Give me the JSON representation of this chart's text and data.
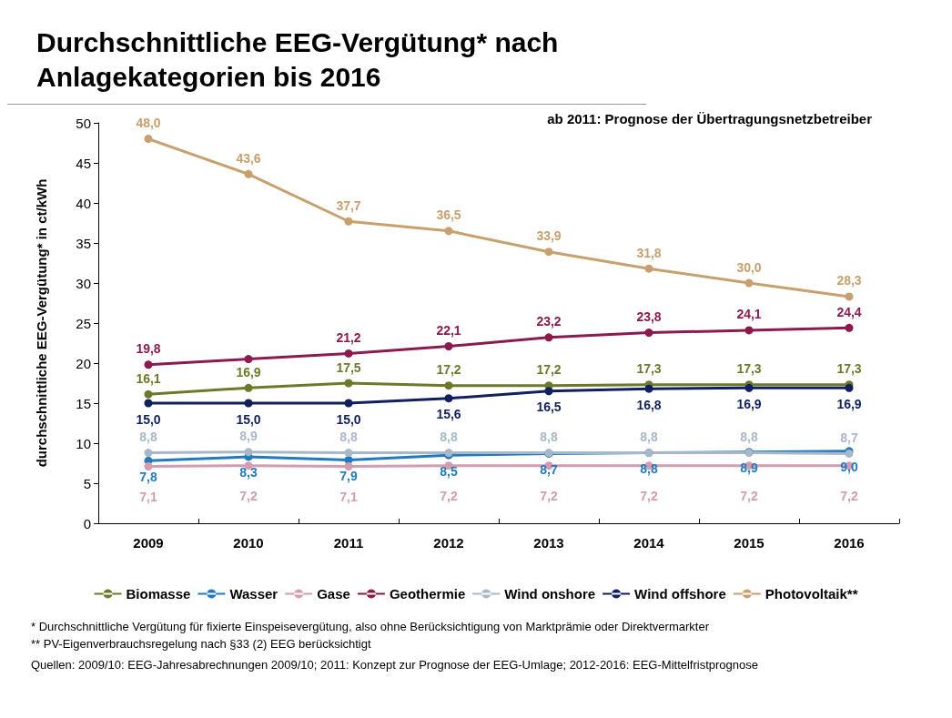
{
  "chart_data": {
    "type": "line",
    "title": "Durchschnittliche EEG-Vergütung* nach Anlagekategorien bis 2016",
    "ylabel": "durchschnittliche EEG-Vergütung* in ct/kWh",
    "categories": [
      "2009",
      "2010",
      "2011",
      "2012",
      "2013",
      "2014",
      "2015",
      "2016"
    ],
    "series": [
      {
        "name": "Biomasse",
        "color": "#6b7a2a",
        "values": [
          16.1,
          16.9,
          17.5,
          17.2,
          17.2,
          17.3,
          17.3,
          17.3
        ],
        "value_labels": [
          "16,1",
          "16,9",
          "17,5",
          "17,2",
          "17,2",
          "17,3",
          "17,3",
          "17,3"
        ]
      },
      {
        "name": "Wasser",
        "color": "#1f7ac0",
        "values": [
          7.8,
          8.3,
          7.9,
          8.5,
          8.7,
          8.8,
          8.9,
          9.0
        ],
        "value_labels": [
          "7,8",
          "8,3",
          "7,9",
          "8,5",
          "8,7",
          "8,8",
          "8,9",
          "9,0"
        ]
      },
      {
        "name": "Gase",
        "color": "#d49cb0",
        "values": [
          7.1,
          7.2,
          7.1,
          7.2,
          7.2,
          7.2,
          7.2,
          7.2
        ],
        "value_labels": [
          "7,1",
          "7,2",
          "7,1",
          "7,2",
          "7,2",
          "7,2",
          "7,2",
          "7,2"
        ]
      },
      {
        "name": "Geothermie",
        "color": "#8b1a4f",
        "values": [
          19.8,
          20.5,
          21.2,
          22.1,
          23.2,
          23.8,
          24.1,
          24.4
        ],
        "value_labels": [
          "19,8",
          null,
          "21,2",
          "22,1",
          "23,2",
          "23,8",
          "24,1",
          "24,4"
        ]
      },
      {
        "name": "Wind onshore",
        "color": "#a8b8c8",
        "values": [
          8.8,
          8.9,
          8.8,
          8.8,
          8.8,
          8.8,
          8.8,
          8.7
        ],
        "value_labels": [
          "8,8",
          "8,9",
          "8,8",
          "8,8",
          "8,8",
          "8,8",
          "8,8",
          "8,7"
        ]
      },
      {
        "name": "Wind offshore",
        "color": "#10205e",
        "values": [
          15.0,
          15.0,
          15.0,
          15.6,
          16.5,
          16.8,
          16.9,
          16.9
        ],
        "value_labels": [
          "15,0",
          "15,0",
          "15,0",
          "15,6",
          "16,5",
          "16,8",
          "16,9",
          "16,9"
        ]
      },
      {
        "name": "Photovoltaik**",
        "color": "#c8a06e",
        "values": [
          48.0,
          43.6,
          37.7,
          36.5,
          33.9,
          31.8,
          30.0,
          28.3
        ],
        "value_labels": [
          "48,0",
          "43,6",
          "37,7",
          "36,5",
          "33,9",
          "31,8",
          "30,0",
          "28,3"
        ]
      }
    ],
    "ylim": [
      0,
      50
    ],
    "yticks": [
      0,
      5,
      10,
      15,
      20,
      25,
      30,
      35,
      40,
      45,
      50
    ],
    "grid": false,
    "legend": "bottom",
    "marker": "circle",
    "line_style": "solid",
    "annotations": [
      "ab 2011: Prognose der Übertragungsnetzbetreiber",
      "* Durchschnittliche Vergütung für fixierte Einspeisevergütung, also ohne Berücksichtigung von Marktprämie oder Direktvermarkter",
      "** PV-Eigenverbrauchsregelung nach §33 (2) EEG berücksichtigt",
      "Quellen: 2009/10: EEG-Jahresabrechnungen 2009/10; 2011: Konzept zur Prognose der EEG-Umlage; 2012-2016: EEG-Mittelfristprognose"
    ]
  }
}
